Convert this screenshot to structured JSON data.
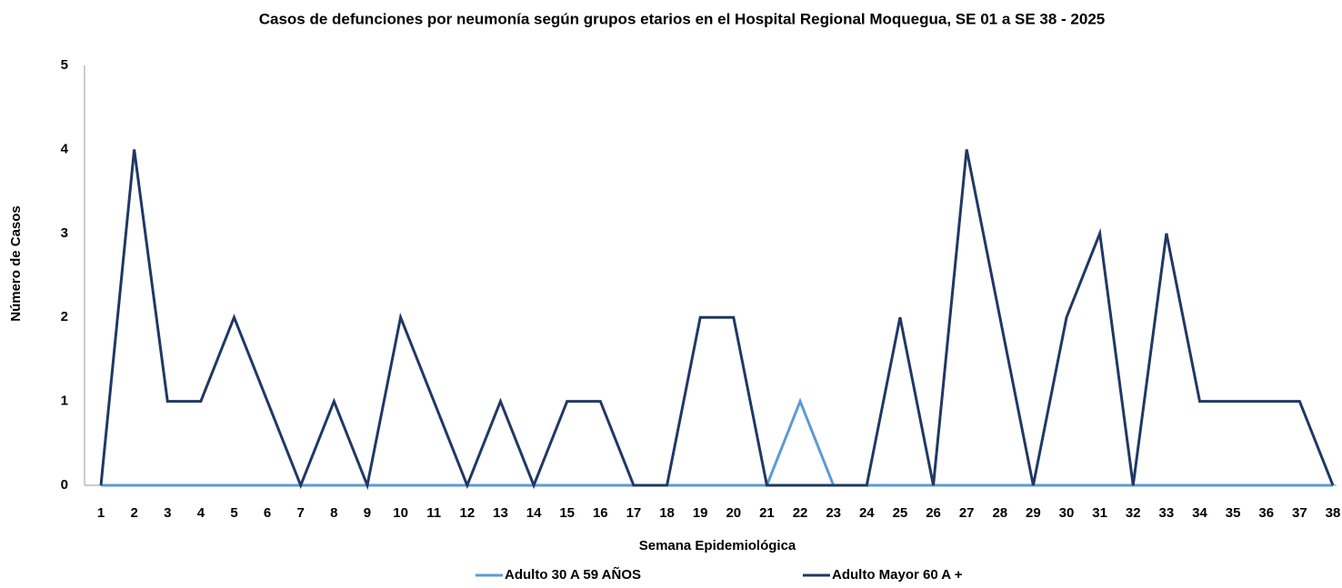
{
  "chart_data": {
    "type": "line",
    "title": "Casos de defunciones por neumonía según grupos etarios en el Hospital Regional Moquegua, SE 01 a SE 38 - 2025",
    "x_label": "Semana Epidemiológica",
    "y_label": "Número de Casos",
    "categories": [
      "1",
      "2",
      "3",
      "4",
      "5",
      "6",
      "7",
      "8",
      "9",
      "10",
      "11",
      "12",
      "13",
      "14",
      "15",
      "16",
      "17",
      "18",
      "19",
      "20",
      "21",
      "22",
      "23",
      "24",
      "25",
      "26",
      "27",
      "28",
      "29",
      "30",
      "31",
      "32",
      "33",
      "34",
      "35",
      "36",
      "37",
      "38"
    ],
    "series": [
      {
        "name": "Adulto 30 A 59 AÑOS",
        "color": "#5b9bd5",
        "values": [
          0,
          0,
          0,
          0,
          0,
          0,
          0,
          0,
          0,
          0,
          0,
          0,
          0,
          0,
          0,
          0,
          0,
          0,
          0,
          0,
          0,
          1,
          0,
          0,
          0,
          0,
          0,
          0,
          0,
          0,
          0,
          0,
          0,
          0,
          0,
          0,
          0,
          0
        ]
      },
      {
        "name": "Adulto Mayor 60 A +",
        "color": "#203864",
        "values": [
          0,
          4,
          1,
          1,
          2,
          1,
          0,
          1,
          0,
          2,
          1,
          0,
          1,
          0,
          1,
          1,
          0,
          0,
          2,
          2,
          0,
          0,
          0,
          0,
          2,
          0,
          4,
          2,
          0,
          2,
          3,
          0,
          3,
          1,
          1,
          1,
          1,
          0
        ]
      }
    ],
    "ylim": [
      0,
      5
    ],
    "yticks": [
      0,
      1,
      2,
      3,
      4,
      5
    ],
    "grid": false
  }
}
